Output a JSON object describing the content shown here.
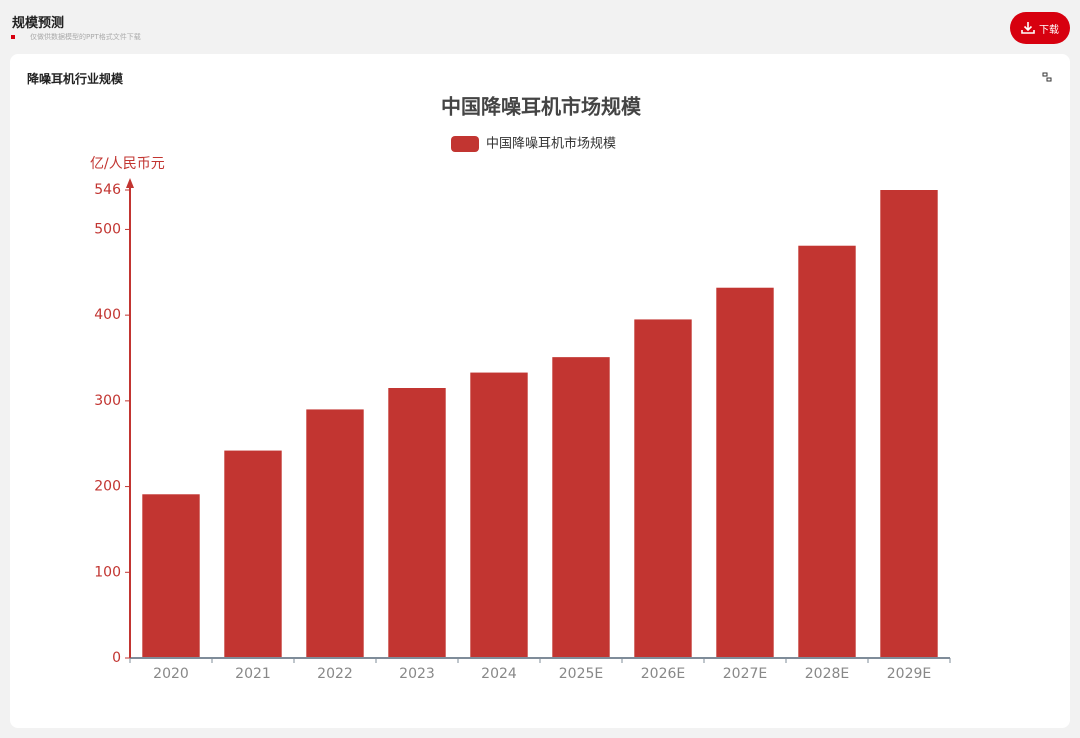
{
  "header": {
    "title": "规模预测",
    "subtitle": "仅做供数据模型的PPT格式文件下载",
    "download": "下载"
  },
  "card": {
    "title": "降噪耳机行业规模"
  },
  "chart_data": {
    "type": "bar",
    "title": "中国降噪耳机市场规模",
    "y_label": "亿/人民币元",
    "categories": [
      "2020",
      "2021",
      "2022",
      "2023",
      "2024",
      "2025E",
      "2026E",
      "2027E",
      "2028E",
      "2029E"
    ],
    "series": [
      {
        "name": "中国降噪耳机市场规模",
        "color": "#c23531",
        "values": [
          191,
          242,
          290,
          315,
          333,
          351,
          395,
          432,
          481,
          546
        ]
      }
    ],
    "ylim": [
      0,
      546
    ],
    "yticks": [
      0,
      100,
      200,
      300,
      400,
      500,
      546
    ]
  }
}
